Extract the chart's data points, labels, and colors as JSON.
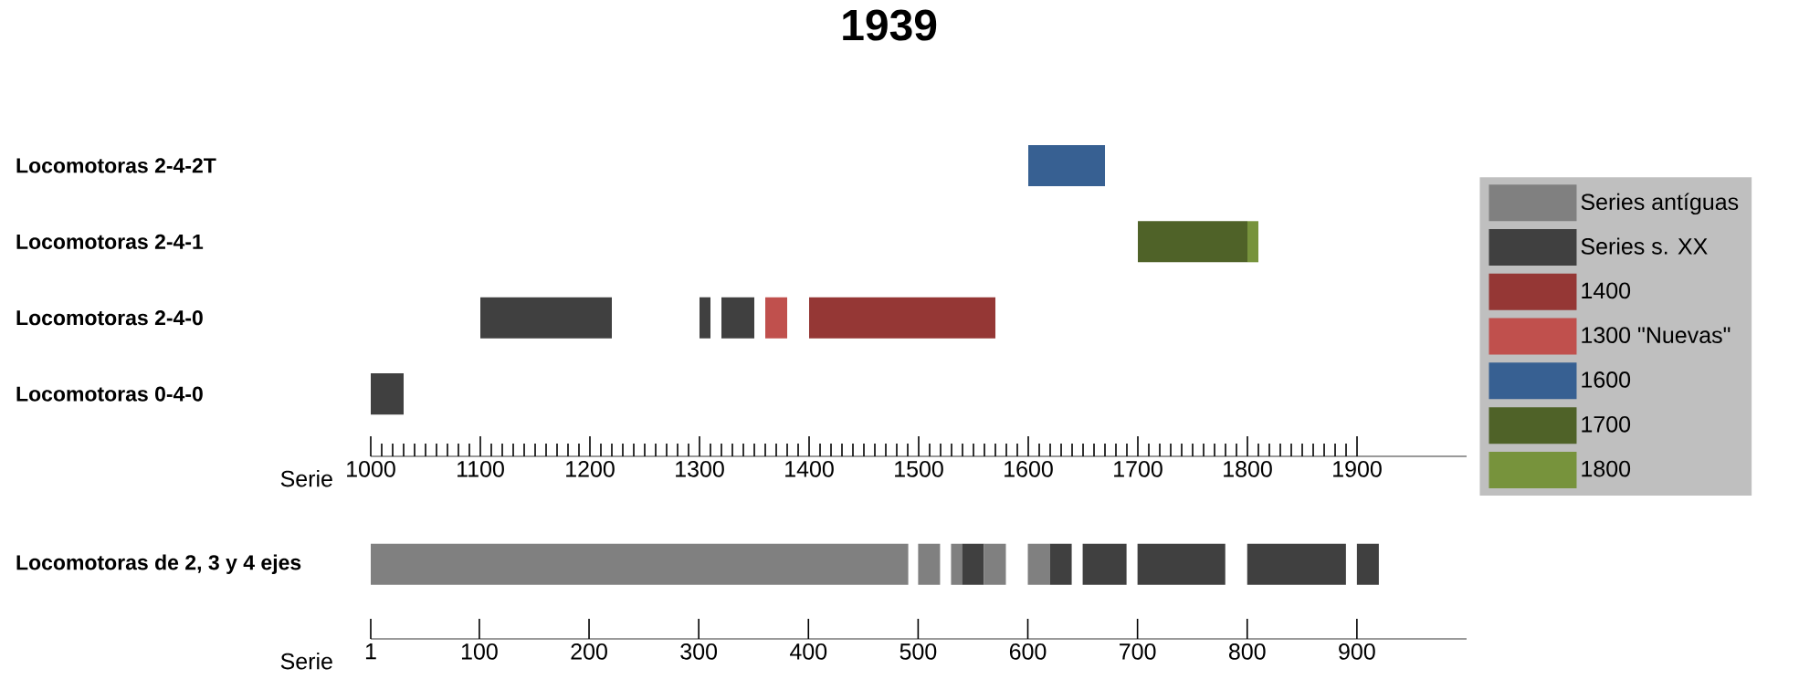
{
  "chart_data": [
    {
      "type": "bar",
      "orientation": "horizontal",
      "title": "1939",
      "xlabel": "Serie",
      "categories": [
        "Locomotoras 2-4-2T",
        "Locomotoras 2-4-1",
        "Locomotoras 2-4-0",
        "Locomotoras 0-4-0"
      ],
      "xlim": [
        1000,
        2000
      ],
      "xticks": [
        1000,
        1100,
        1200,
        1300,
        1400,
        1500,
        1600,
        1700,
        1800,
        1900
      ],
      "legend": "right",
      "series": [
        {
          "name": "Series antíguas",
          "color": "#808080",
          "values": [
            null,
            null,
            null,
            null
          ],
          "base": [
            null,
            null,
            null,
            null
          ]
        },
        {
          "name": "Series s. XX",
          "color": "#404040",
          "values": [
            null,
            null,
            120,
            30
          ],
          "base": [
            null,
            null,
            1100,
            1000
          ]
        },
        {
          "color": "#404040",
          "values": [
            null,
            null,
            10,
            null
          ],
          "base": [
            null,
            null,
            1300,
            null
          ]
        },
        {
          "color": "#404040",
          "values": [
            null,
            null,
            30,
            null
          ],
          "base": [
            null,
            null,
            1320,
            null
          ]
        },
        {
          "name": "1400",
          "color": "#953735",
          "values": [
            null,
            null,
            170,
            null
          ],
          "base": [
            null,
            null,
            1400,
            null
          ]
        },
        {
          "name": "1300 \"Nuevas\"",
          "color": "#c0504d",
          "values": [
            null,
            null,
            20,
            null
          ],
          "base": [
            null,
            null,
            1360,
            null
          ]
        },
        {
          "name": "1600",
          "color": "#376092",
          "values": [
            70,
            null,
            null,
            null
          ],
          "base": [
            1600,
            null,
            null,
            null
          ]
        },
        {
          "name": "1700",
          "color": "#4f6228",
          "values": [
            null,
            100,
            null,
            null
          ],
          "base": [
            null,
            1700,
            null,
            null
          ]
        },
        {
          "name": "1800",
          "color": "#77933c",
          "values": [
            null,
            10,
            null,
            null
          ],
          "base": [
            null,
            1800,
            null,
            null
          ]
        }
      ]
    },
    {
      "type": "bar",
      "orientation": "horizontal",
      "xlabel": "Serie",
      "categories": [
        "Locomotoras de 2, 3 y 4 ejes"
      ],
      "xlim": [
        1,
        1000
      ],
      "xticks": [
        1,
        100,
        200,
        300,
        400,
        500,
        600,
        700,
        800,
        900
      ],
      "series": [
        {
          "color": "#808080",
          "values": [
            490
          ],
          "base": [
            1
          ]
        },
        {
          "color": "#808080",
          "values": [
            20
          ],
          "base": [
            500
          ]
        },
        {
          "color": "#808080",
          "values": [
            10
          ],
          "base": [
            530
          ]
        },
        {
          "color": "#404040",
          "values": [
            20
          ],
          "base": [
            540
          ]
        },
        {
          "color": "#808080",
          "values": [
            20
          ],
          "base": [
            560
          ]
        },
        {
          "color": "#808080",
          "values": [
            20
          ],
          "base": [
            600
          ]
        },
        {
          "color": "#404040",
          "values": [
            20
          ],
          "base": [
            620
          ]
        },
        {
          "color": "#404040",
          "values": [
            40
          ],
          "base": [
            650
          ]
        },
        {
          "color": "#404040",
          "values": [
            80
          ],
          "base": [
            700
          ]
        },
        {
          "color": "#404040",
          "values": [
            90
          ],
          "base": [
            800
          ]
        },
        {
          "color": "#404040",
          "values": [
            20
          ],
          "base": [
            900
          ]
        }
      ]
    }
  ]
}
